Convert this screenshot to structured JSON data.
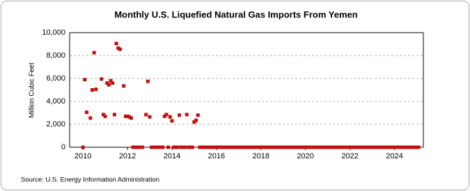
{
  "chart_data": {
    "type": "scatter",
    "title": "Monthly U.S. Liquefied Natural Gas Imports From Yemen",
    "y_label": "Million Cubic Feet",
    "source": "Source: U.S. Energy Information Administration",
    "x": [
      2010.0,
      2010.083,
      2010.167,
      2010.25,
      2010.333,
      2010.417,
      2010.5,
      2010.583,
      2010.667,
      2010.75,
      2010.833,
      2010.917,
      2011.0,
      2011.083,
      2011.167,
      2011.25,
      2011.333,
      2011.417,
      2011.5,
      2011.583,
      2011.667,
      2011.75,
      2011.833,
      2011.917,
      2012.0,
      2012.083,
      2012.167,
      2012.25,
      2012.333,
      2012.417,
      2012.5,
      2012.583,
      2012.667,
      2012.75,
      2012.833,
      2012.917,
      2013.0,
      2013.083,
      2013.167,
      2013.25,
      2013.333,
      2013.417,
      2013.5,
      2013.583,
      2013.667,
      2013.75,
      2013.833,
      2013.917,
      2014.0,
      2014.083,
      2014.167,
      2014.25,
      2014.333,
      2014.417,
      2014.5,
      2014.583,
      2014.667,
      2014.75,
      2014.833,
      2014.917,
      2015.0,
      2015.083,
      2015.167,
      2015.25,
      2015.333,
      2015.417,
      2015.5,
      2015.583,
      2015.667,
      2015.75,
      2015.833,
      2015.917,
      2016.0,
      2016.083,
      2016.167,
      2016.25,
      2016.333,
      2016.417,
      2016.5,
      2016.583,
      2016.667,
      2016.75,
      2016.833,
      2016.917,
      2017.0,
      2017.083,
      2017.167,
      2017.25,
      2017.333,
      2017.417,
      2017.5,
      2017.583,
      2017.667,
      2017.75,
      2017.833,
      2017.917,
      2018.0,
      2018.083,
      2018.167,
      2018.25,
      2018.333,
      2018.417,
      2018.5,
      2018.583,
      2018.667,
      2018.75,
      2018.833,
      2018.917,
      2019.0,
      2019.083,
      2019.167,
      2019.25,
      2019.333,
      2019.417,
      2019.5,
      2019.583,
      2019.667,
      2019.75,
      2019.833,
      2019.917,
      2020.0,
      2020.083,
      2020.167,
      2020.25,
      2020.333,
      2020.417,
      2020.5,
      2020.583,
      2020.667,
      2020.75,
      2020.833,
      2020.917,
      2021.0,
      2021.083,
      2021.167,
      2021.25,
      2021.333,
      2021.417,
      2021.5,
      2021.583,
      2021.667,
      2021.75,
      2021.833,
      2021.917,
      2022.0,
      2022.083,
      2022.167,
      2022.25,
      2022.333,
      2022.417,
      2022.5,
      2022.583,
      2022.667,
      2022.75,
      2022.833,
      2022.917,
      2023.0,
      2023.083,
      2023.167,
      2023.25,
      2023.333,
      2023.417,
      2023.5,
      2023.583,
      2023.667,
      2023.75,
      2023.833,
      2023.917,
      2024.0,
      2024.083,
      2024.167,
      2024.25,
      2024.333,
      2024.417,
      2024.5,
      2024.583,
      2024.667,
      2024.75,
      2024.833,
      2024.917,
      2025.0,
      2025.083
    ],
    "values": [
      0,
      5900,
      3050,
      null,
      2550,
      5000,
      8250,
      5050,
      null,
      null,
      5950,
      2850,
      2700,
      5600,
      5450,
      5800,
      5600,
      2850,
      9050,
      8650,
      8550,
      null,
      5350,
      2700,
      2700,
      2650,
      2550,
      0,
      0,
      0,
      0,
      0,
      0,
      null,
      2850,
      5750,
      2650,
      0,
      0,
      0,
      0,
      0,
      0,
      0,
      2700,
      2850,
      0,
      2650,
      2300,
      0,
      0,
      0,
      2800,
      0,
      0,
      0,
      2850,
      0,
      0,
      0,
      2200,
      2350,
      2800,
      0,
      0,
      0,
      0,
      0,
      0,
      0,
      0,
      0,
      0,
      0,
      0,
      0,
      0,
      0,
      0,
      0,
      0,
      0,
      0,
      0,
      0,
      0,
      0,
      0,
      0,
      0,
      0,
      0,
      0,
      0,
      0,
      0,
      0,
      0,
      0,
      0,
      0,
      0,
      0,
      0,
      0,
      0,
      0,
      0,
      0,
      0,
      0,
      0,
      0,
      0,
      0,
      0,
      0,
      0,
      0,
      0,
      0,
      0,
      0,
      0,
      0,
      0,
      0,
      0,
      0,
      0,
      0,
      0,
      0,
      0,
      0,
      0,
      0,
      0,
      0,
      0,
      0,
      0,
      0,
      0,
      0,
      0,
      0,
      0,
      0,
      0,
      0,
      0,
      0,
      0,
      0,
      0,
      0,
      0,
      0,
      0,
      0,
      0,
      0,
      0,
      0,
      0,
      0,
      0,
      0,
      0,
      0,
      0,
      0,
      0,
      0,
      0,
      0,
      0,
      0,
      0,
      0,
      0
    ],
    "color": "#c0120c",
    "xlim": [
      2009.4,
      2025.3
    ],
    "xticks": [
      2010,
      2012,
      2014,
      2016,
      2018,
      2020,
      2022,
      2024
    ],
    "ylim": [
      0,
      10000
    ],
    "yticks": [
      0,
      {
        "value": 2000,
        "label": "2,000"
      },
      {
        "value": 4000,
        "label": "4,000"
      },
      {
        "value": 6000,
        "label": "6,000"
      },
      {
        "value": 8000,
        "label": "8,000"
      },
      {
        "value": 10000,
        "label": "10,000"
      }
    ],
    "grid": true
  }
}
